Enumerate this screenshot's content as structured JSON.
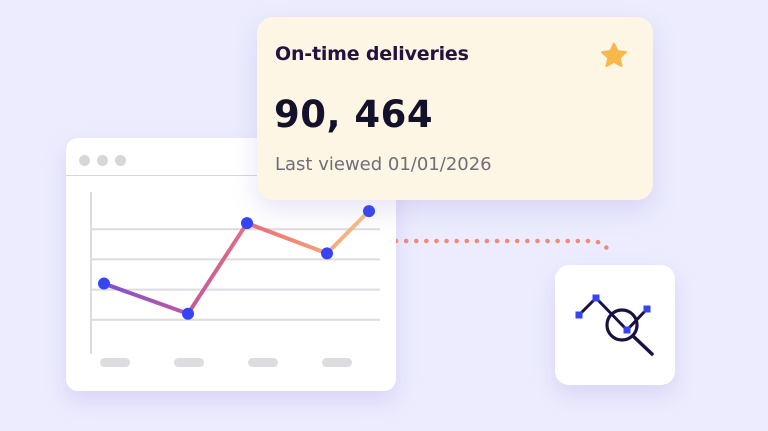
{
  "card": {
    "title": "On-time deliveries",
    "value": "90, 464",
    "last_viewed": "Last viewed 01/01/2026",
    "icon": "star-icon",
    "star_color": "#F7B84B"
  },
  "chart_data": {
    "type": "line",
    "values": [
      3.2,
      2.2,
      5.2,
      4.2,
      5.6
    ],
    "ylim": [
      1,
      6
    ],
    "grid": true,
    "gradient_colors": [
      "#7B52D1",
      "#C5599A",
      "#F37F73",
      "#F6C58A"
    ],
    "point_color": "#3644F5"
  },
  "analytics_icon": {
    "icon": "trend-search-icon",
    "color": "#1A1140",
    "accent": "#3644F5"
  },
  "colors": {
    "background": "#ECECFE",
    "connector": "#F08A7E"
  }
}
